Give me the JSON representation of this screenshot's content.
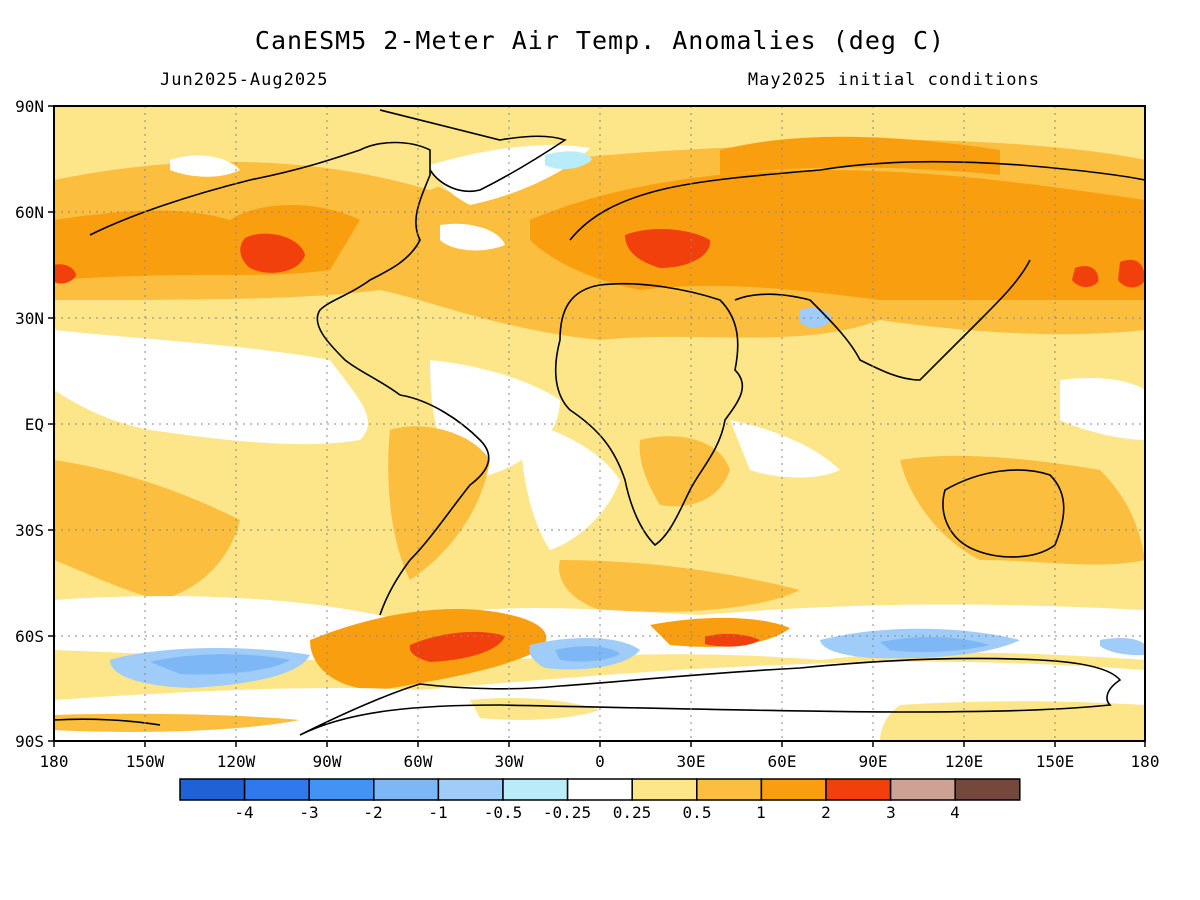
{
  "title": "CanESM5 2-Meter Air Temp. Anomalies (deg C)",
  "period": "Jun2025-Aug2025",
  "initial_conditions": "May2025 initial conditions",
  "map": {
    "lat_labels": [
      "90N",
      "60N",
      "30N",
      "EQ",
      "30S",
      "60S",
      "90S"
    ],
    "lon_labels": [
      "180",
      "150W",
      "120W",
      "90W",
      "60W",
      "30W",
      "0",
      "30E",
      "60E",
      "90E",
      "120E",
      "150E",
      "180"
    ],
    "grid": "dotted",
    "coastlines": true
  },
  "colorbar": {
    "colors": [
      "#1f62d8",
      "#2f78ee",
      "#4393f5",
      "#7eb7f5",
      "#9fccf8",
      "#b8ecf8",
      "#ffffff",
      "#fde58a",
      "#fbbe3e",
      "#f99f0f",
      "#f2400d",
      "#cea195",
      "#76473c"
    ],
    "tick_labels": [
      "-4",
      "-3",
      "-2",
      "-1",
      "-0.5",
      "-0.25",
      "0.25",
      "0.5",
      "1",
      "2",
      "3",
      "4"
    ]
  }
}
